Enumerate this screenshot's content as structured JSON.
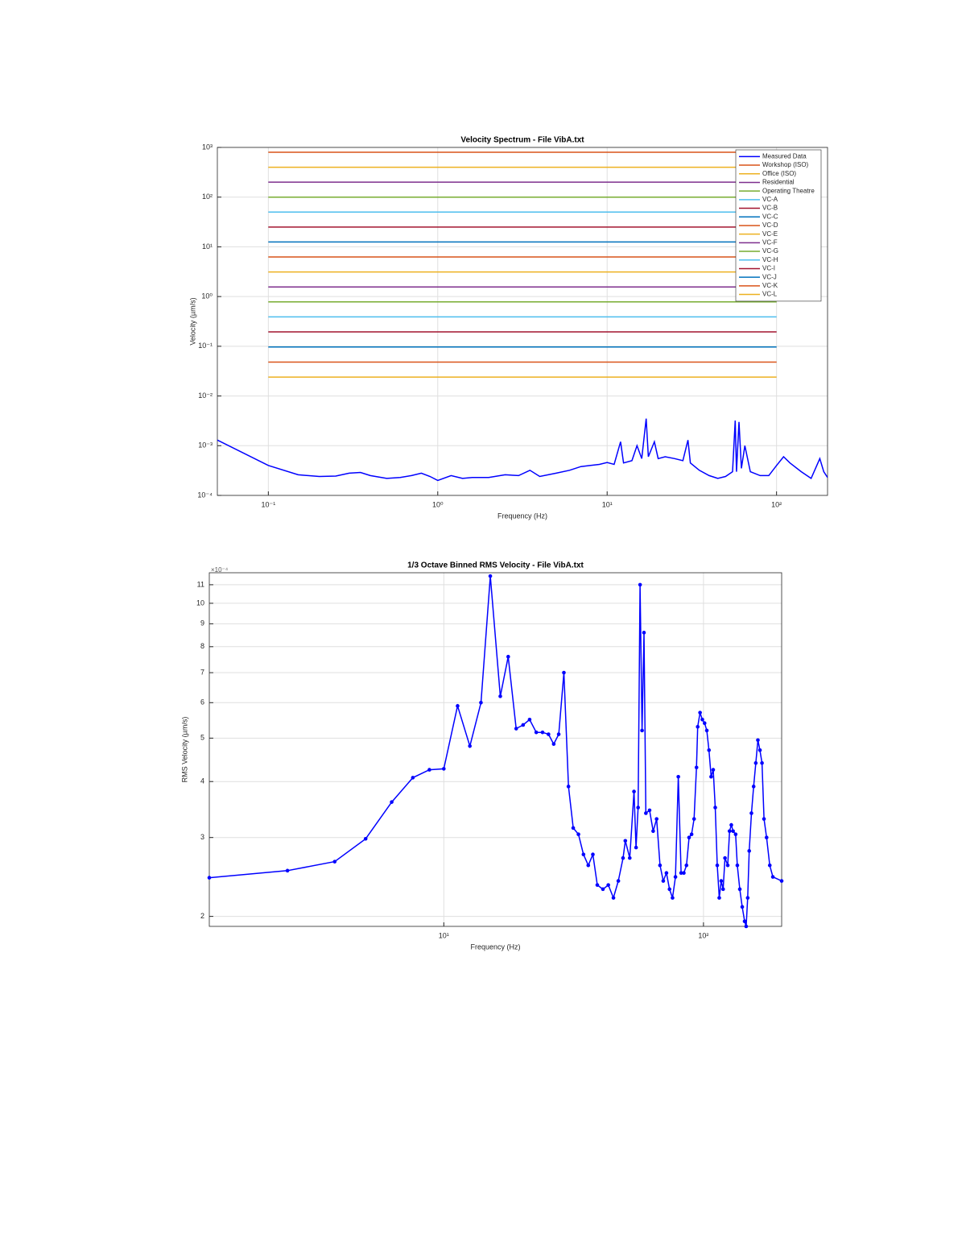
{
  "chart_data": [
    {
      "type": "line",
      "title": "Velocity Spectrum - File VibA.txt",
      "x_label": "Frequency (Hz)",
      "y_label": "Velocity (µm/s)",
      "xscale": "log",
      "yscale": "log",
      "grid": true,
      "legend": "northeast",
      "xlim": [
        0.05,
        200
      ],
      "ylim": [
        0.0001,
        1000
      ],
      "xticks": [
        {
          "value": 0.1,
          "label": "10⁻¹"
        },
        {
          "value": 1,
          "label": "10⁰"
        },
        {
          "value": 10,
          "label": "10¹"
        },
        {
          "value": 100,
          "label": "10²"
        }
      ],
      "yticks": [
        {
          "value": 0.0001,
          "label": "10⁻⁴"
        },
        {
          "value": 0.001,
          "label": "10⁻³"
        },
        {
          "value": 0.01,
          "label": "10⁻²"
        },
        {
          "value": 0.1,
          "label": "10⁻¹"
        },
        {
          "value": 1,
          "label": "10⁰"
        },
        {
          "value": 10,
          "label": "10¹"
        },
        {
          "value": 100,
          "label": "10²"
        },
        {
          "value": 1000,
          "label": "10³"
        }
      ],
      "series": [
        {
          "name": "Measured Data",
          "color": "#0000ff",
          "x": [
            0.05,
            0.1,
            0.15,
            0.2,
            0.25,
            0.3,
            0.35,
            0.4,
            0.5,
            0.6,
            0.7,
            0.8,
            0.9,
            1.0,
            1.2,
            1.4,
            1.6,
            2.0,
            2.5,
            3,
            3.5,
            4,
            5,
            6,
            7,
            8,
            9,
            10,
            11,
            12,
            12.5,
            14,
            15,
            16,
            17,
            17.5,
            19,
            20,
            22,
            25,
            28,
            30,
            31,
            35,
            40,
            45,
            50,
            55,
            57,
            58,
            60,
            62,
            65,
            70,
            80,
            90,
            100,
            110,
            120,
            140,
            160,
            180,
            190,
            200
          ],
          "values": [
            0.0013,
            0.0004,
            0.00026,
            0.00024,
            0.000245,
            0.00028,
            0.00029,
            0.00025,
            0.00022,
            0.00023,
            0.00025,
            0.00028,
            0.00024,
            0.0002,
            0.00025,
            0.00022,
            0.00023,
            0.00023,
            0.00026,
            0.00025,
            0.00032,
            0.00024,
            0.00028,
            0.00032,
            0.00038,
            0.0004,
            0.00042,
            0.00046,
            0.00042,
            0.0012,
            0.00045,
            0.0005,
            0.001,
            0.00055,
            0.0035,
            0.0006,
            0.0012,
            0.00055,
            0.0006,
            0.00055,
            0.0005,
            0.0013,
            0.00045,
            0.00032,
            0.00025,
            0.00022,
            0.00024,
            0.0003,
            0.0032,
            0.0003,
            0.003,
            0.00035,
            0.001,
            0.0003,
            0.00025,
            0.00025,
            0.0004,
            0.0006,
            0.00045,
            0.0003,
            0.00022,
            0.00055,
            0.0003,
            0.00023
          ]
        },
        {
          "name": "Workshop (ISO)",
          "color": "#D95319",
          "x": [
            0.1,
            100
          ],
          "values": [
            800,
            800
          ]
        },
        {
          "name": "Office (ISO)",
          "color": "#EDB120",
          "x": [
            0.1,
            100
          ],
          "values": [
            400,
            400
          ]
        },
        {
          "name": "Residential",
          "color": "#7E2F8E",
          "x": [
            0.1,
            100
          ],
          "values": [
            200,
            200
          ]
        },
        {
          "name": "Operating Theatre",
          "color": "#77AC30",
          "x": [
            0.1,
            100
          ],
          "values": [
            100,
            100
          ]
        },
        {
          "name": "VC-A",
          "color": "#4DBEEE",
          "x": [
            0.1,
            100
          ],
          "values": [
            50,
            50
          ]
        },
        {
          "name": "VC-B",
          "color": "#A2142F",
          "x": [
            0.1,
            100
          ],
          "values": [
            25,
            25
          ]
        },
        {
          "name": "VC-C",
          "color": "#0072BD",
          "x": [
            0.1,
            100
          ],
          "values": [
            12.5,
            12.5
          ]
        },
        {
          "name": "VC-D",
          "color": "#D95319",
          "x": [
            0.1,
            100
          ],
          "values": [
            6.25,
            6.25
          ]
        },
        {
          "name": "VC-E",
          "color": "#EDB120",
          "x": [
            0.1,
            100
          ],
          "values": [
            3.12,
            3.12
          ]
        },
        {
          "name": "VC-F",
          "color": "#7E2F8E",
          "x": [
            0.1,
            100
          ],
          "values": [
            1.56,
            1.56
          ]
        },
        {
          "name": "VC-G",
          "color": "#77AC30",
          "x": [
            0.1,
            100
          ],
          "values": [
            0.78,
            0.78
          ]
        },
        {
          "name": "VC-H",
          "color": "#4DBEEE",
          "x": [
            0.1,
            100
          ],
          "values": [
            0.39,
            0.39
          ]
        },
        {
          "name": "VC-I",
          "color": "#A2142F",
          "x": [
            0.1,
            100
          ],
          "values": [
            0.195,
            0.195
          ]
        },
        {
          "name": "VC-J",
          "color": "#0072BD",
          "x": [
            0.1,
            100
          ],
          "values": [
            0.097,
            0.097
          ]
        },
        {
          "name": "VC-K",
          "color": "#D95319",
          "x": [
            0.1,
            100
          ],
          "values": [
            0.048,
            0.048
          ]
        },
        {
          "name": "VC-L",
          "color": "#EDB120",
          "x": [
            0.1,
            100
          ],
          "values": [
            0.024,
            0.024
          ]
        }
      ]
    },
    {
      "type": "line",
      "title": "1/3 Octave Binned RMS Velocity - File VibA.txt",
      "x_label": "Frequency (Hz)",
      "y_label": "RMS Velocity (µm/s)",
      "y_multiplier": "×10⁻⁴",
      "xscale": "log",
      "yscale": "log",
      "grid": true,
      "marker": true,
      "xlim": [
        1.25,
        200
      ],
      "ylim": [
        1.9,
        11.7
      ],
      "xticks": [
        {
          "value": 10,
          "label": "10¹"
        },
        {
          "value": 100,
          "label": "10²"
        }
      ],
      "yticks": [
        2,
        3,
        4,
        5,
        6,
        7,
        8,
        9,
        10,
        11
      ],
      "series": [
        {
          "color": "#0000ff",
          "x": [
            1.25,
            2.5,
            3.8,
            5.0,
            6.3,
            7.6,
            8.8,
            10,
            11.3,
            12.6,
            13.9,
            15.1,
            16.5,
            17.7,
            19.0,
            20.2,
            21.4,
            22.7,
            24,
            25.3,
            26.5,
            27.7,
            29,
            30.2,
            31.5,
            33,
            34.5,
            36,
            37.5,
            39,
            41,
            43,
            45,
            47,
            49,
            50,
            52,
            54,
            55,
            56,
            57,
            58,
            59,
            60,
            62,
            64,
            66,
            68,
            70,
            72,
            74,
            76,
            78,
            80,
            82,
            84,
            86,
            88,
            90,
            92,
            94,
            95,
            97,
            99,
            101,
            103,
            105,
            107,
            109,
            111,
            113,
            115,
            117,
            119,
            121,
            124,
            126,
            128,
            130,
            133,
            135,
            138,
            141,
            144,
            146,
            148,
            150,
            153,
            156,
            159,
            162,
            165,
            168,
            171,
            175,
            180,
            185,
            200
          ],
          "values": [
            2.44,
            2.53,
            2.65,
            2.98,
            3.6,
            4.08,
            4.25,
            4.27,
            5.9,
            4.8,
            6.0,
            11.5,
            6.2,
            7.6,
            5.25,
            5.35,
            5.5,
            5.15,
            5.15,
            5.1,
            4.85,
            5.1,
            7.0,
            3.9,
            3.15,
            3.05,
            2.75,
            2.6,
            2.75,
            2.35,
            2.3,
            2.35,
            2.2,
            2.4,
            2.7,
            2.95,
            2.7,
            3.8,
            2.85,
            3.5,
            11.0,
            5.2,
            8.6,
            3.4,
            3.45,
            3.1,
            3.3,
            2.6,
            2.4,
            2.5,
            2.3,
            2.2,
            2.45,
            4.1,
            2.5,
            2.5,
            2.6,
            3.0,
            3.05,
            3.3,
            4.3,
            5.3,
            5.7,
            5.5,
            5.4,
            5.2,
            4.7,
            4.1,
            4.25,
            3.5,
            2.6,
            2.2,
            2.4,
            2.3,
            2.7,
            2.6,
            3.1,
            3.2,
            3.1,
            3.05,
            2.6,
            2.3,
            2.1,
            1.95,
            1.9,
            2.2,
            2.8,
            3.4,
            3.9,
            4.4,
            4.95,
            4.7,
            4.4,
            3.3,
            3.0,
            2.6,
            2.45,
            2.4
          ]
        }
      ]
    }
  ]
}
